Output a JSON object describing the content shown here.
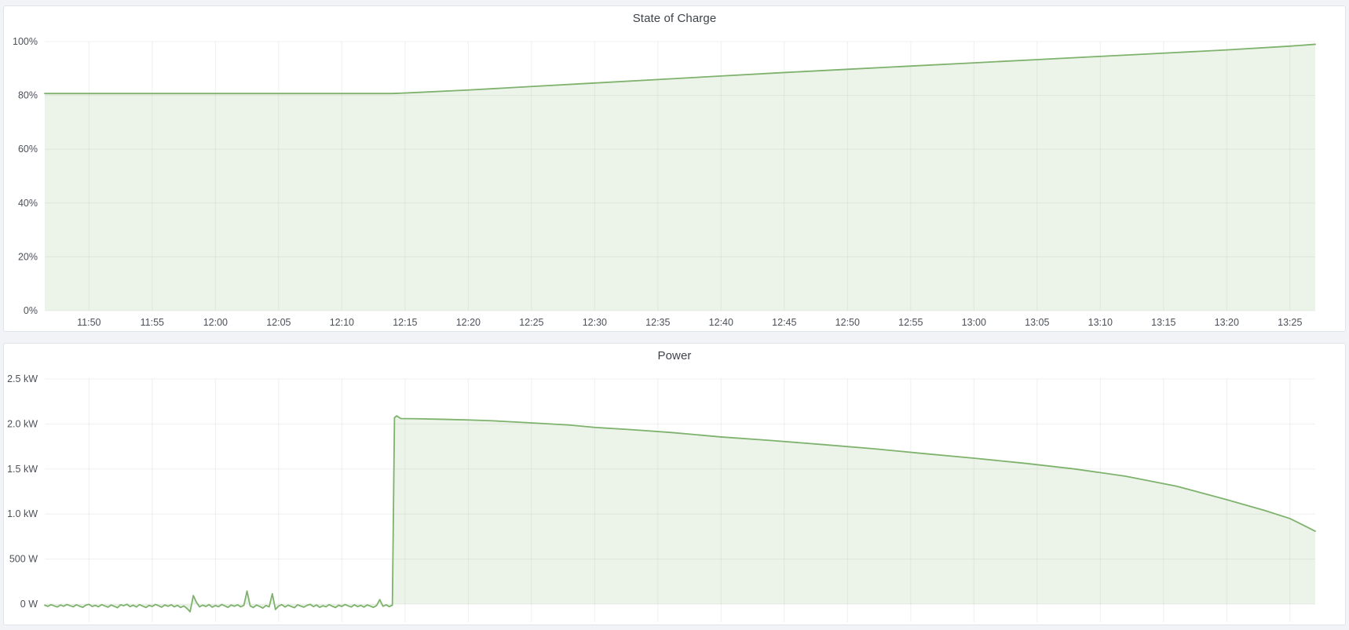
{
  "theme": {
    "page_background": "#f2f3f7",
    "panel_background": "#ffffff",
    "panel_border": "#e0e3ea",
    "grid_color": "rgba(40,46,52,0.07)",
    "tick_text_color": "#4c5058",
    "title_text_color": "#3e434a",
    "series_green": "#7eb26d",
    "series_fill": "rgba(126,178,109,0.15)"
  },
  "chart_data": [
    {
      "type": "area",
      "title": "State of Charge",
      "unit": "percent",
      "legend": "none",
      "grid": "on",
      "x_range": [
        "11:46:30",
        "13:27:00"
      ],
      "x_ticks": [
        "11:50",
        "11:55",
        "12:00",
        "12:05",
        "12:10",
        "12:15",
        "12:20",
        "12:25",
        "12:30",
        "12:35",
        "12:40",
        "12:45",
        "12:50",
        "12:55",
        "13:00",
        "13:05",
        "13:10",
        "13:15",
        "13:20",
        "13:25"
      ],
      "x_labels_visible": true,
      "ylim": [
        0,
        100
      ],
      "y_ticks": [
        {
          "label": "0%",
          "value": 0
        },
        {
          "label": "20%",
          "value": 20
        },
        {
          "label": "40%",
          "value": 40
        },
        {
          "label": "60%",
          "value": 60
        },
        {
          "label": "80%",
          "value": 80
        },
        {
          "label": "100%",
          "value": 100
        }
      ],
      "series": [
        {
          "name": "State of Charge",
          "color": "#7eb26d",
          "fill": "rgba(126,178,109,0.15)",
          "points": [
            [
              "11:46:30",
              80.7
            ],
            [
              "12:14:00",
              80.7
            ],
            [
              "12:16:00",
              81.1
            ],
            [
              "12:20:00",
              82.0
            ],
            [
              "12:25:00",
              83.3
            ],
            [
              "12:30:00",
              84.6
            ],
            [
              "12:35:00",
              85.9
            ],
            [
              "12:40:00",
              87.2
            ],
            [
              "12:45:00",
              88.5
            ],
            [
              "12:50:00",
              89.7
            ],
            [
              "12:55:00",
              90.9
            ],
            [
              "13:00:00",
              92.1
            ],
            [
              "13:05:00",
              93.3
            ],
            [
              "13:10:00",
              94.5
            ],
            [
              "13:15:00",
              95.7
            ],
            [
              "13:20:00",
              96.9
            ],
            [
              "13:25:00",
              98.3
            ],
            [
              "13:27:00",
              99.0
            ]
          ]
        }
      ]
    },
    {
      "type": "area",
      "title": "Power",
      "unit": "watt",
      "legend": "none",
      "grid": "on",
      "x_range": [
        "11:46:30",
        "13:27:00"
      ],
      "x_ticks": [
        "11:50",
        "11:55",
        "12:00",
        "12:05",
        "12:10",
        "12:15",
        "12:20",
        "12:25",
        "12:30",
        "12:35",
        "12:40",
        "12:45",
        "12:50",
        "12:55",
        "13:00",
        "13:05",
        "13:10",
        "13:15",
        "13:20",
        "13:25"
      ],
      "x_labels_visible": false,
      "ylim": [
        -200,
        2500
      ],
      "y_ticks": [
        {
          "label": "0 W",
          "value": 0
        },
        {
          "label": "500 W",
          "value": 500
        },
        {
          "label": "1.0 kW",
          "value": 1000
        },
        {
          "label": "1.5 kW",
          "value": 1500
        },
        {
          "label": "2.0 kW",
          "value": 2000
        },
        {
          "label": "2.5 kW",
          "value": 2500
        }
      ],
      "series": [
        {
          "name": "Power",
          "color": "#7eb26d",
          "fill": "rgba(126,178,109,0.15)",
          "noise": {
            "t0": "11:46:30",
            "step_s": 15,
            "values_w": [
              -12,
              -25,
              -6,
              -20,
              -32,
              -10,
              -24,
              -4,
              -18,
              -30,
              -8,
              -22,
              -36,
              -12,
              -2,
              -26,
              -14,
              -30,
              -6,
              -20,
              -34,
              -10,
              -24,
              -40,
              -8,
              -18,
              -2,
              -28,
              -12,
              -32,
              -6,
              -22,
              -38,
              -14,
              -26,
              -4,
              -18,
              -34,
              -10,
              -24,
              -8,
              -30,
              -14,
              -38,
              -20,
              -48,
              -85,
              95,
              20,
              -30,
              -12,
              -26,
              -6,
              -34,
              -16,
              -28,
              -4,
              -20,
              -36,
              -10,
              -24,
              -8,
              -30,
              -14,
              145,
              -20,
              -38,
              -10,
              -26,
              -44,
              -16,
              -30,
              115,
              -60,
              -22,
              -6,
              -32,
              -12,
              -26,
              -40,
              -8,
              -22,
              -34,
              -14,
              -2,
              -28,
              -10,
              -36,
              -18,
              -30,
              -6,
              -24,
              -38,
              -12,
              -26,
              -4,
              -20,
              -32,
              -8,
              -28,
              -14,
              -34,
              -10,
              -22,
              -36,
              -16,
              50,
              -24,
              -8,
              -28,
              -12
            ]
          },
          "points": [
            [
              "12:14:10",
              2070
            ],
            [
              "12:14:20",
              2090
            ],
            [
              "12:14:40",
              2060
            ],
            [
              "12:16:00",
              2058
            ],
            [
              "12:18:00",
              2052
            ],
            [
              "12:20:00",
              2045
            ],
            [
              "12:22:00",
              2035
            ],
            [
              "12:25:00",
              2012
            ],
            [
              "12:28:00",
              1988
            ],
            [
              "12:30:00",
              1962
            ],
            [
              "12:33:00",
              1936
            ],
            [
              "12:36:00",
              1906
            ],
            [
              "12:40:00",
              1856
            ],
            [
              "12:44:00",
              1816
            ],
            [
              "12:48:00",
              1772
            ],
            [
              "12:52:00",
              1726
            ],
            [
              "12:56:00",
              1672
            ],
            [
              "13:00:00",
              1620
            ],
            [
              "13:04:00",
              1564
            ],
            [
              "13:08:00",
              1500
            ],
            [
              "13:12:00",
              1420
            ],
            [
              "13:16:00",
              1310
            ],
            [
              "13:20:00",
              1160
            ],
            [
              "13:23:00",
              1040
            ],
            [
              "13:25:00",
              950
            ],
            [
              "13:26:00",
              880
            ],
            [
              "13:27:00",
              810
            ]
          ]
        }
      ]
    }
  ]
}
